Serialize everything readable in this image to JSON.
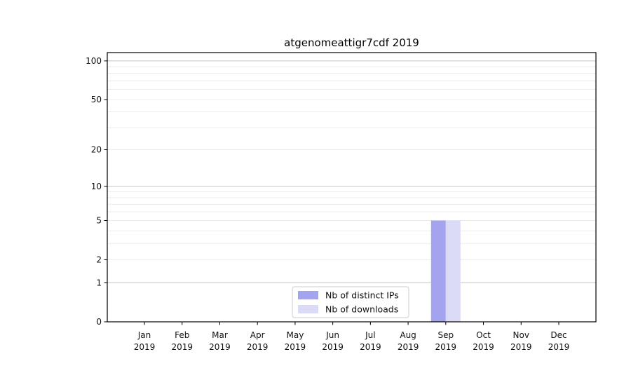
{
  "title": "atgenomeattigr7cdf 2019",
  "chart_data": {
    "type": "bar",
    "title": "atgenomeattigr7cdf 2019",
    "categories": [
      "Jan",
      "Feb",
      "Mar",
      "Apr",
      "May",
      "Jun",
      "Jul",
      "Aug",
      "Sep",
      "Oct",
      "Nov",
      "Dec"
    ],
    "category_year_line": "2019",
    "series": [
      {
        "name": "Nb of distinct IPs",
        "color": "#a3a3ee",
        "values": [
          0,
          0,
          0,
          0,
          0,
          0,
          0,
          0,
          5,
          0,
          0,
          0
        ]
      },
      {
        "name": "Nb of downloads",
        "color": "#dbdbf8",
        "values": [
          0,
          0,
          0,
          0,
          0,
          0,
          0,
          0,
          5,
          0,
          0,
          0
        ]
      }
    ],
    "xlabel": "",
    "ylabel": "",
    "yscale": "log1p",
    "ylim": [
      0,
      116
    ],
    "yticks": [
      0,
      1,
      2,
      5,
      10,
      20,
      50,
      100
    ],
    "major_gridlines": [
      1,
      10,
      100
    ],
    "minor_gridlines": [
      2,
      3,
      4,
      5,
      6,
      7,
      8,
      9,
      20,
      30,
      40,
      50,
      60,
      70,
      80,
      90
    ],
    "grid": true,
    "legend_position": "lower center"
  },
  "colors": {
    "spine": "#000000",
    "major_grid": "#c4c4c4",
    "minor_grid": "#ececec",
    "tick_label": "#111111",
    "bar_distinct_ips": "#a3a3ee",
    "bar_downloads": "#dbdbf8",
    "legend_border": "#cccccc",
    "legend_background": "#ffffff"
  }
}
